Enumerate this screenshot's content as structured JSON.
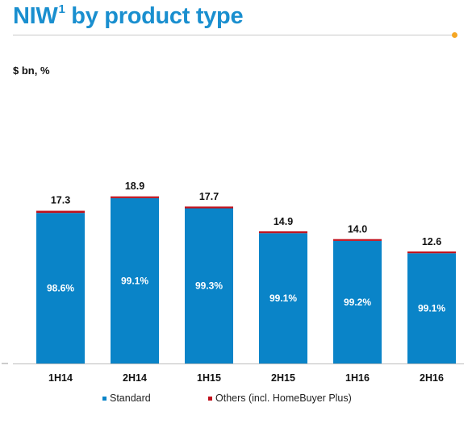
{
  "header": {
    "title": "NIW",
    "title_superscript": "1",
    "title_rest": " by product type",
    "unit": "$ bn, %"
  },
  "colors": {
    "standard": "#0a84c8",
    "others": "#c0101c",
    "accent_dot": "#f5a623",
    "title": "#1a8fcf"
  },
  "chart_data": {
    "type": "bar",
    "stacked": true,
    "categories": [
      "1H14",
      "2H14",
      "1H15",
      "2H15",
      "1H16",
      "2H16"
    ],
    "totals": [
      17.3,
      18.9,
      17.7,
      14.9,
      14.0,
      12.6
    ],
    "total_labels": [
      "17.3",
      "18.9",
      "17.7",
      "14.9",
      "14.0",
      "12.6"
    ],
    "series": [
      {
        "name": "Standard",
        "share_pct": [
          98.6,
          99.1,
          99.3,
          99.1,
          99.2,
          99.1
        ],
        "labels": [
          "98.6%",
          "99.1%",
          "99.3%",
          "99.1%",
          "99.2%",
          "99.1%"
        ]
      },
      {
        "name": "Others (incl. HomeBuyer Plus)",
        "share_pct": [
          1.4,
          0.9,
          0.7,
          0.9,
          0.8,
          0.9
        ]
      }
    ],
    "ylim": [
      0,
      18.9
    ],
    "grid": false,
    "legend_position": "bottom"
  }
}
